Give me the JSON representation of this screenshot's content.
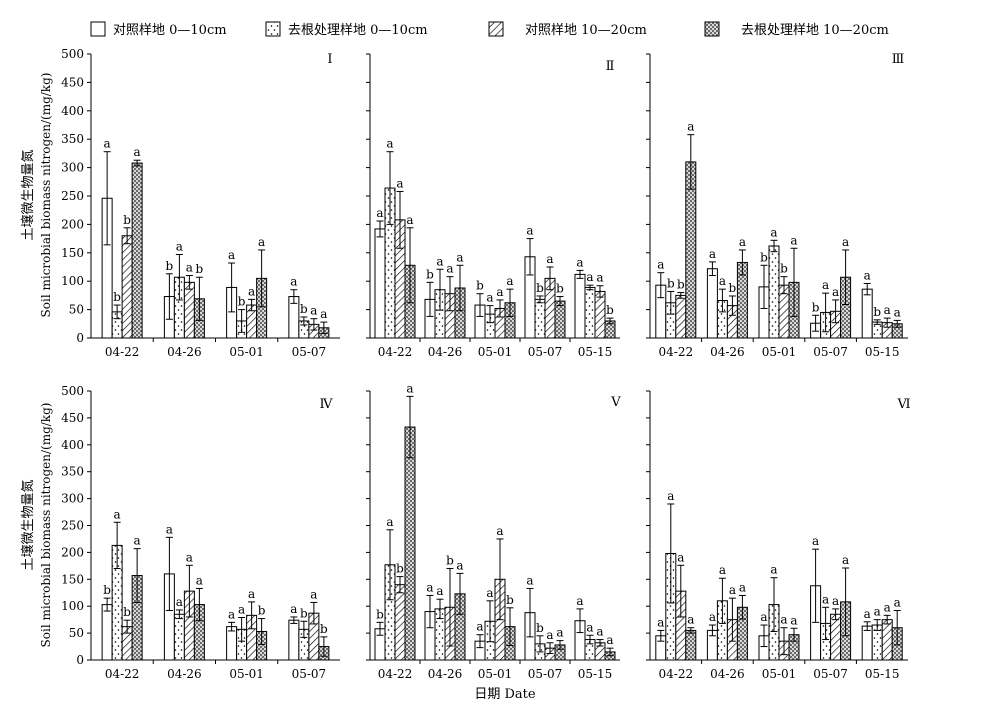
{
  "legend": [
    {
      "label": "对照样地 0—10cm",
      "pattern": "white"
    },
    {
      "label": "去根处理样地 0—10cm",
      "pattern": "dots"
    },
    {
      "label": "对照样地 10—20cm",
      "pattern": "hatch"
    },
    {
      "label": "去根处理样地 10—20cm",
      "pattern": "cross"
    }
  ],
  "ylabel_cn": "土壤微生物量氮",
  "ylabel_en": "Soil microbial biomass nitrogen/(mg/kg)",
  "xlabel": "日期 Date",
  "yticks": [
    "0",
    "50",
    "100",
    "150",
    "200",
    "250",
    "300",
    "350",
    "400",
    "450",
    "500"
  ],
  "chart_data": [
    {
      "type": "bar",
      "panel": "Ⅰ",
      "ylim": [
        0,
        500
      ],
      "categories": [
        "04-22",
        "04-26",
        "05-01",
        "05-07"
      ],
      "series": [
        {
          "values": [
            246,
            73,
            89,
            73
          ],
          "errors": [
            82,
            40,
            43,
            12
          ],
          "letters": [
            "a",
            "b",
            "a",
            "a"
          ]
        },
        {
          "values": [
            46,
            107,
            30,
            30
          ],
          "errors": [
            12,
            40,
            20,
            7
          ],
          "letters": [
            "b",
            "a",
            "b",
            "b"
          ]
        },
        {
          "values": [
            180,
            98,
            58,
            24
          ],
          "errors": [
            14,
            12,
            10,
            10
          ],
          "letters": [
            "b",
            "a",
            "a",
            "a"
          ]
        },
        {
          "values": [
            308,
            69,
            105,
            18
          ],
          "errors": [
            5,
            38,
            50,
            10
          ],
          "letters": [
            "a",
            "b",
            "a",
            "a"
          ]
        }
      ]
    },
    {
      "type": "bar",
      "panel": "Ⅱ",
      "ylim": [
        0,
        500
      ],
      "categories": [
        "04-22",
        "04-26",
        "05-01",
        "05-07",
        "05-15"
      ],
      "series": [
        {
          "values": [
            192,
            68,
            58,
            143,
            112
          ],
          "errors": [
            14,
            30,
            20,
            32,
            7
          ],
          "letters": [
            "a",
            "b",
            "b",
            "a",
            "a"
          ]
        },
        {
          "values": [
            264,
            85,
            42,
            68,
            89
          ],
          "errors": [
            64,
            36,
            15,
            6,
            4
          ],
          "letters": [
            "a",
            "a",
            "a",
            "b",
            "a"
          ]
        },
        {
          "values": [
            208,
            78,
            52,
            105,
            82
          ],
          "errors": [
            50,
            30,
            15,
            20,
            10
          ],
          "letters": [
            "a",
            "a",
            "a",
            "a",
            "a"
          ]
        },
        {
          "values": [
            128,
            88,
            62,
            65,
            30
          ],
          "errors": [
            66,
            40,
            24,
            8,
            5
          ],
          "letters": [
            "a",
            "a",
            "a",
            "b",
            "b"
          ]
        }
      ]
    },
    {
      "type": "bar",
      "panel": "Ⅲ",
      "ylim": [
        0,
        500
      ],
      "categories": [
        "04-22",
        "04-26",
        "05-01",
        "05-07",
        "05-15"
      ],
      "series": [
        {
          "values": [
            93,
            122,
            90,
            26,
            86
          ],
          "errors": [
            22,
            12,
            38,
            14,
            10
          ],
          "letters": [
            "a",
            "a",
            "b",
            "b",
            "a"
          ]
        },
        {
          "values": [
            62,
            66,
            162,
            45,
            28
          ],
          "errors": [
            20,
            20,
            10,
            34,
            4
          ],
          "letters": [
            "b",
            "a",
            "a",
            "a",
            "b"
          ]
        },
        {
          "values": [
            75,
            57,
            93,
            47,
            27
          ],
          "errors": [
            5,
            17,
            15,
            20,
            8
          ],
          "letters": [
            "b",
            "b",
            "b",
            "a",
            "a"
          ]
        },
        {
          "values": [
            310,
            133,
            98,
            107,
            25
          ],
          "errors": [
            48,
            22,
            60,
            48,
            6
          ],
          "letters": [
            "a",
            "a",
            "a",
            "a",
            "a"
          ]
        }
      ]
    },
    {
      "type": "bar",
      "panel": "Ⅳ",
      "ylim": [
        0,
        500
      ],
      "categories": [
        "04-22",
        "04-26",
        "05-01",
        "05-07"
      ],
      "series": [
        {
          "values": [
            103,
            160,
            62,
            74
          ],
          "errors": [
            12,
            68,
            8,
            6
          ],
          "letters": [
            "b",
            "a",
            "a",
            "a"
          ]
        },
        {
          "values": [
            213,
            85,
            57,
            57
          ],
          "errors": [
            43,
            8,
            22,
            15
          ],
          "letters": [
            "a",
            "a",
            "a",
            "b"
          ]
        },
        {
          "values": [
            62,
            128,
            83,
            87
          ],
          "errors": [
            12,
            48,
            25,
            20
          ],
          "letters": [
            "b",
            "a",
            "a",
            "a"
          ]
        },
        {
          "values": [
            157,
            103,
            53,
            25
          ],
          "errors": [
            50,
            30,
            24,
            18
          ],
          "letters": [
            "a",
            "a",
            "b",
            "b"
          ]
        }
      ]
    },
    {
      "type": "bar",
      "panel": "Ⅴ",
      "ylim": [
        0,
        500
      ],
      "categories": [
        "04-22",
        "04-26",
        "05-01",
        "05-07",
        "05-15"
      ],
      "series": [
        {
          "values": [
            58,
            90,
            35,
            88,
            73
          ],
          "errors": [
            12,
            30,
            12,
            45,
            22
          ],
          "letters": [
            "b",
            "a",
            "a",
            "a",
            "a"
          ]
        },
        {
          "values": [
            177,
            95,
            72,
            30,
            38
          ],
          "errors": [
            65,
            18,
            38,
            15,
            8
          ],
          "letters": [
            "a",
            "a",
            "a",
            "b",
            "a"
          ]
        },
        {
          "values": [
            140,
            98,
            150,
            22,
            32
          ],
          "errors": [
            15,
            72,
            75,
            10,
            6
          ],
          "letters": [
            "b",
            "b",
            "a",
            "a",
            "a"
          ]
        },
        {
          "values": [
            433,
            123,
            62,
            28,
            15
          ],
          "errors": [
            57,
            38,
            35,
            8,
            7
          ],
          "letters": [
            "a",
            "a",
            "b",
            "a",
            "a"
          ]
        }
      ]
    },
    {
      "type": "bar",
      "panel": "Ⅵ",
      "ylim": [
        0,
        500
      ],
      "categories": [
        "04-22",
        "04-26",
        "05-01",
        "05-07",
        "05-15"
      ],
      "series": [
        {
          "values": [
            45,
            55,
            45,
            138,
            63
          ],
          "errors": [
            10,
            10,
            20,
            68,
            8
          ],
          "letters": [
            "a",
            "a",
            "a",
            "a",
            "a"
          ]
        },
        {
          "values": [
            198,
            110,
            103,
            68,
            65
          ],
          "errors": [
            92,
            42,
            50,
            30,
            10
          ],
          "letters": [
            "a",
            "a",
            "a",
            "a",
            "a"
          ]
        },
        {
          "values": [
            128,
            75,
            35,
            85,
            75
          ],
          "errors": [
            48,
            40,
            25,
            10,
            8
          ],
          "letters": [
            "a",
            "a",
            "a",
            "a",
            "a"
          ]
        },
        {
          "values": [
            55,
            98,
            47,
            108,
            60
          ],
          "errors": [
            5,
            22,
            12,
            63,
            32
          ],
          "letters": [
            "a",
            "a",
            "a",
            "a",
            "a"
          ]
        }
      ]
    }
  ]
}
